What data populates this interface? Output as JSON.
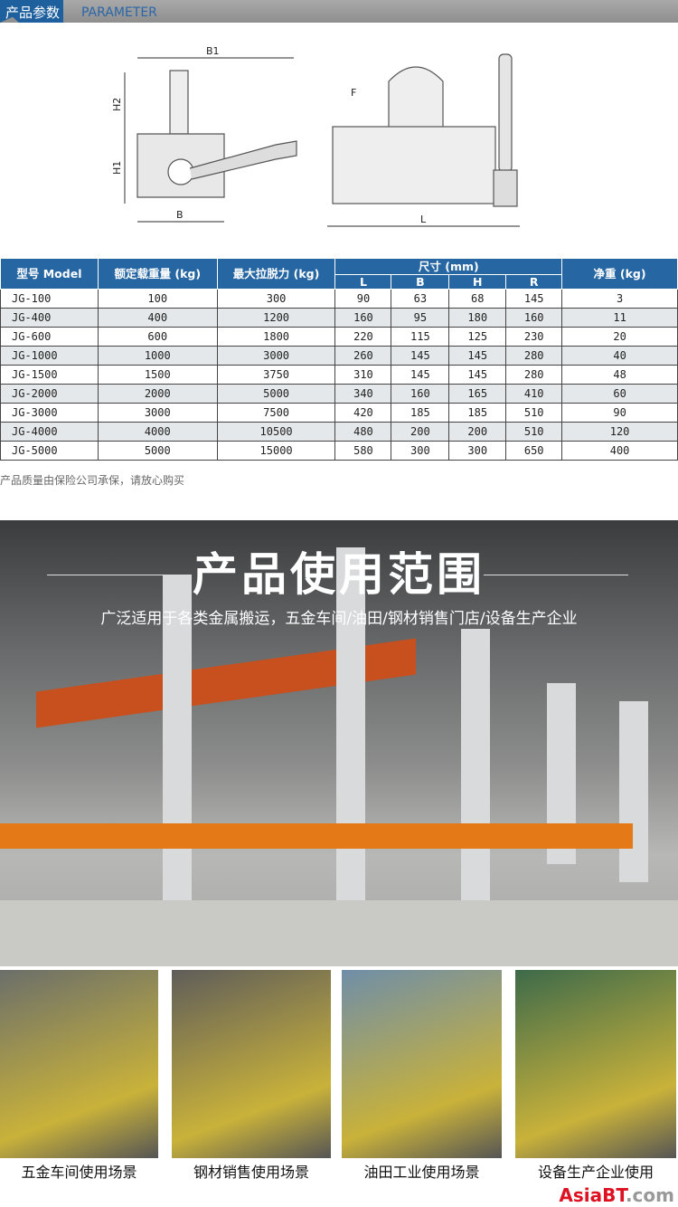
{
  "header": {
    "title_cn": "产品参数",
    "title_en": "PARAMETER"
  },
  "diagram": {
    "labels": [
      "B1",
      "H2",
      "H1",
      "B",
      "F",
      "L"
    ]
  },
  "table": {
    "headers": {
      "model": "型号 Model",
      "rated": "额定载重量 (kg)",
      "pull": "最大拉脱力 (kg)",
      "size": "尺寸 (mm)",
      "L": "L",
      "B": "B",
      "H": "H",
      "R": "R",
      "weight": "净重 (kg)"
    },
    "rows": [
      [
        "JG-100",
        "100",
        "300",
        "90",
        "63",
        "68",
        "145",
        "3"
      ],
      [
        "JG-400",
        "400",
        "1200",
        "160",
        "95",
        "180",
        "160",
        "11"
      ],
      [
        "JG-600",
        "600",
        "1800",
        "220",
        "115",
        "125",
        "230",
        "20"
      ],
      [
        "JG-1000",
        "1000",
        "3000",
        "260",
        "145",
        "145",
        "280",
        "40"
      ],
      [
        "JG-1500",
        "1500",
        "3750",
        "310",
        "145",
        "145",
        "280",
        "48"
      ],
      [
        "JG-2000",
        "2000",
        "5000",
        "340",
        "160",
        "165",
        "410",
        "60"
      ],
      [
        "JG-3000",
        "3000",
        "7500",
        "420",
        "185",
        "185",
        "510",
        "90"
      ],
      [
        "JG-4000",
        "4000",
        "10500",
        "480",
        "200",
        "200",
        "510",
        "120"
      ],
      [
        "JG-5000",
        "5000",
        "15000",
        "580",
        "300",
        "300",
        "650",
        "400"
      ]
    ]
  },
  "note": "产品质量由保险公司承保，请放心购买",
  "usage": {
    "title": "产品使用范围",
    "subtitle": "广泛适用于各类金属搬运，五金车间/油田/钢材销售门店/设备生产企业"
  },
  "scenes": [
    {
      "caption": "五金车间使用场景",
      "color": "#6b6f6a"
    },
    {
      "caption": "钢材销售使用场景",
      "color": "#5f5d5a"
    },
    {
      "caption": "油田工业使用场景",
      "color": "#6f8ea8"
    },
    {
      "caption": "设备生产企业使用",
      "color": "#3d6a4a"
    }
  ],
  "watermark": {
    "a": "AsiaBT",
    "b": ".com"
  }
}
